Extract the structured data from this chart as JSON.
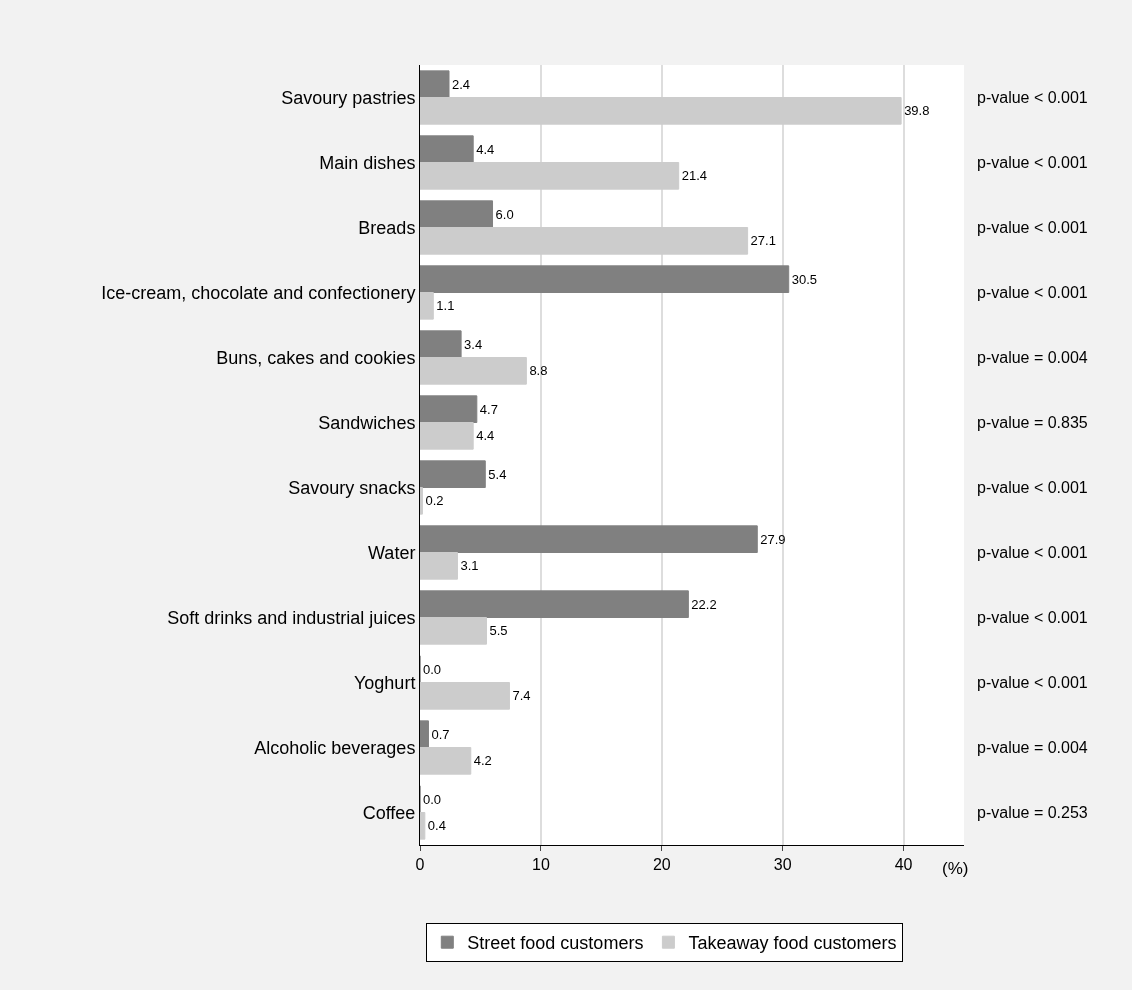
{
  "chart_data": {
    "type": "bar",
    "orientation": "horizontal",
    "xlabel": "(%)",
    "categories": [
      "Savoury pastries",
      "Main dishes",
      "Breads",
      "Ice-cream, chocolate and confectionery",
      "Buns, cakes and cookies",
      "Sandwiches",
      "Savoury snacks",
      "Water",
      "Soft drinks and industrial juices",
      "Yoghurt",
      "Alcoholic beverages",
      "Coffee"
    ],
    "series": [
      {
        "name": "Street food customers",
        "color": "#808080",
        "values": [
          2.4,
          4.4,
          6.0,
          30.5,
          3.4,
          4.7,
          5.4,
          27.9,
          22.2,
          0.0,
          0.7,
          0.0
        ],
        "value_labels": [
          "2.4",
          "4.4",
          "6.0",
          "30.5",
          "3.4",
          "4.7",
          "5.4",
          "27.9",
          "22.2",
          "0.0",
          "0.7",
          "0.0"
        ]
      },
      {
        "name": "Takeaway food customers",
        "color": "#cccccc",
        "values": [
          39.8,
          21.4,
          27.1,
          1.1,
          8.8,
          4.4,
          0.2,
          3.1,
          5.5,
          7.4,
          4.2,
          0.4
        ],
        "value_labels": [
          "39.8",
          "21.4",
          "27.1",
          "1.1",
          "8.8",
          "4.4",
          "0.2",
          "3.1",
          "5.5",
          "7.4",
          "4.2",
          "0.4"
        ]
      }
    ],
    "xlim": [
      0,
      45
    ],
    "xticks": [
      0,
      10,
      20,
      30,
      40
    ],
    "grid": "x",
    "legend": "bottom",
    "annotations": [
      "p-value < 0.001",
      "p-value < 0.001",
      "p-value < 0.001",
      "p-value < 0.001",
      "p-value = 0.004",
      "p-value = 0.835",
      "p-value < 0.001",
      "p-value < 0.001",
      "p-value < 0.001",
      "p-value < 0.001",
      "p-value = 0.004",
      "p-value = 0.253"
    ]
  }
}
